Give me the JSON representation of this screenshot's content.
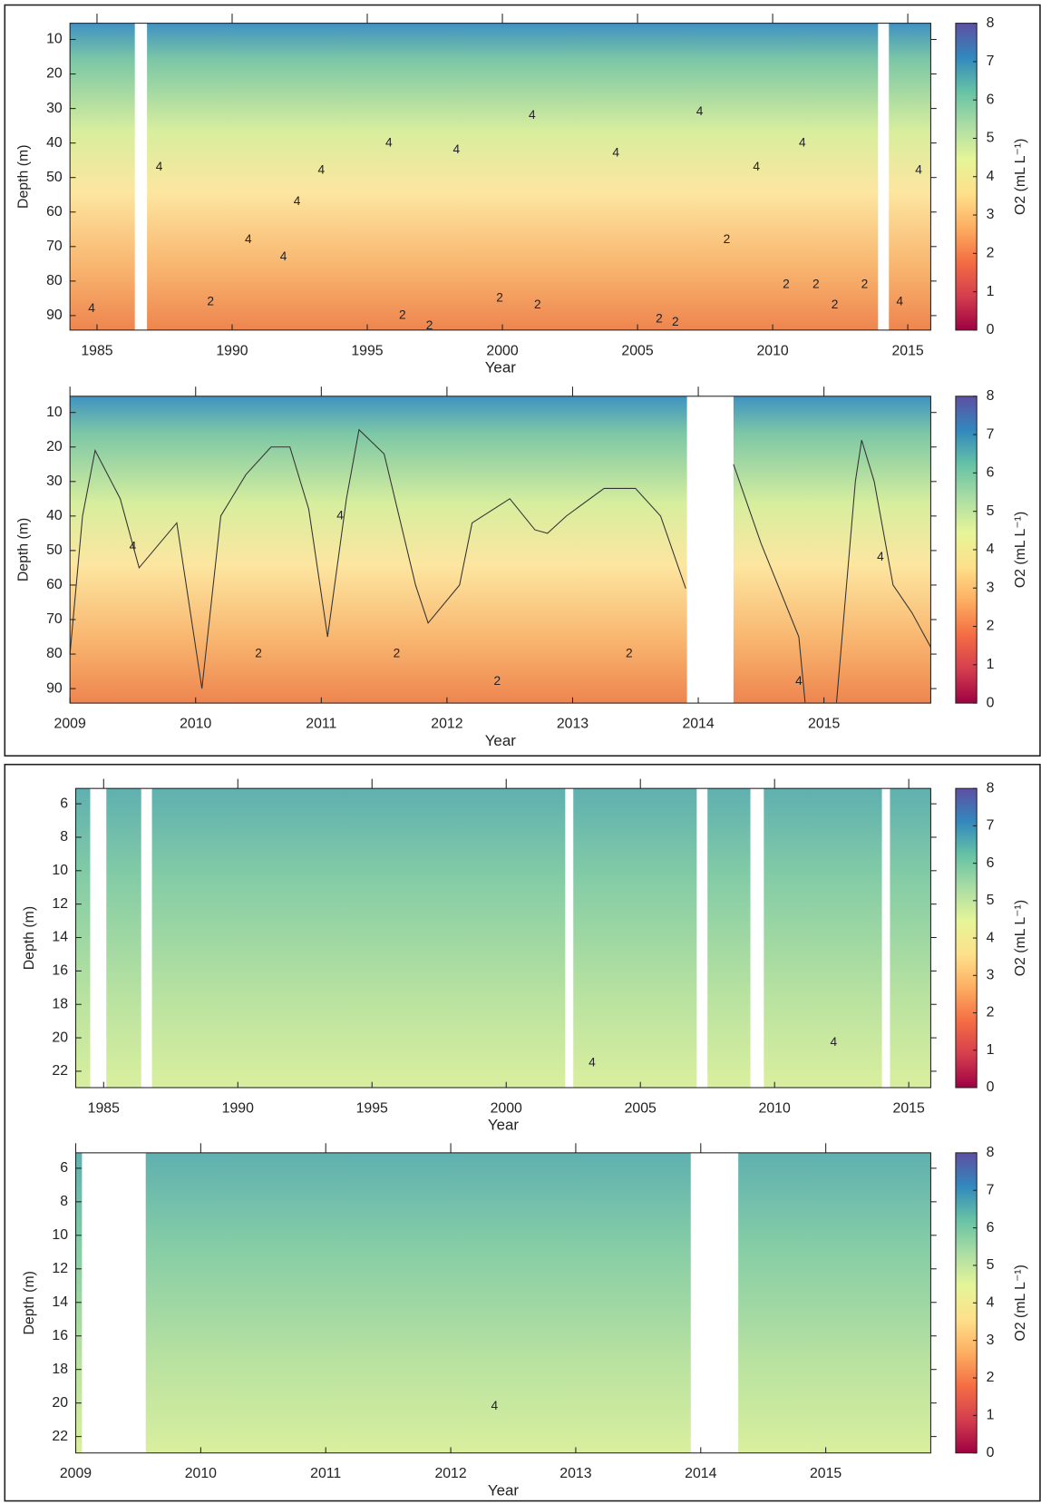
{
  "chart_data": [
    {
      "type": "heatmap",
      "xlabel": "Year",
      "ylabel": "Depth (m)",
      "colorbar_label": "O2 (mL L⁻¹)",
      "colormap": [
        "#9e0142",
        "#d53e4f",
        "#f46d43",
        "#fdae61",
        "#fee08b",
        "#e6f598",
        "#abdda4",
        "#66c2a5",
        "#3288bd",
        "#5e4fa2"
      ],
      "xlim": [
        1984,
        2015.85
      ],
      "xticks": [
        1985,
        1990,
        1995,
        2000,
        2005,
        2010,
        2015
      ],
      "ylim": [
        5.3,
        94.2
      ],
      "yticks": [
        10,
        20,
        30,
        40,
        50,
        60,
        70,
        80,
        90
      ],
      "clim": [
        0,
        8
      ],
      "cticks": [
        0,
        1,
        2,
        3,
        4,
        5,
        6,
        7,
        8
      ],
      "gaps": [
        [
          1986.4,
          1986.85
        ],
        [
          2013.9,
          2014.3
        ]
      ],
      "contour_labels": [
        {
          "x": 1984.8,
          "y": 88,
          "level": 4
        },
        {
          "x": 1987.3,
          "y": 47,
          "level": 4
        },
        {
          "x": 1989.2,
          "y": 86,
          "level": 2
        },
        {
          "x": 1990.6,
          "y": 68,
          "level": 4
        },
        {
          "x": 1991.9,
          "y": 73,
          "level": 4
        },
        {
          "x": 1992.4,
          "y": 57,
          "level": 4
        },
        {
          "x": 1993.3,
          "y": 48,
          "level": 4
        },
        {
          "x": 1995.8,
          "y": 40,
          "level": 4
        },
        {
          "x": 1996.3,
          "y": 90,
          "level": 2
        },
        {
          "x": 1997.3,
          "y": 93,
          "level": 2
        },
        {
          "x": 1998.3,
          "y": 42,
          "level": 4
        },
        {
          "x": 1999.9,
          "y": 85,
          "level": 2
        },
        {
          "x": 2001.1,
          "y": 32,
          "level": 4
        },
        {
          "x": 2001.3,
          "y": 87,
          "level": 2
        },
        {
          "x": 2004.2,
          "y": 43,
          "level": 4
        },
        {
          "x": 2005.8,
          "y": 91,
          "level": 2
        },
        {
          "x": 2006.4,
          "y": 92,
          "level": 2
        },
        {
          "x": 2007.3,
          "y": 31,
          "level": 4
        },
        {
          "x": 2008.3,
          "y": 68,
          "level": 2
        },
        {
          "x": 2009.4,
          "y": 47,
          "level": 4
        },
        {
          "x": 2010.5,
          "y": 81,
          "level": 2
        },
        {
          "x": 2011.1,
          "y": 40,
          "level": 4
        },
        {
          "x": 2011.6,
          "y": 81,
          "level": 2
        },
        {
          "x": 2012.3,
          "y": 87,
          "level": 2
        },
        {
          "x": 2013.4,
          "y": 81,
          "level": 2
        },
        {
          "x": 2014.7,
          "y": 86,
          "level": 4
        },
        {
          "x": 2015.4,
          "y": 48,
          "level": 4
        }
      ],
      "field": "deep"
    },
    {
      "type": "heatmap",
      "xlabel": "Year",
      "ylabel": "Depth (m)",
      "colorbar_label": "O2 (mL L⁻¹)",
      "colormap": [
        "#9e0142",
        "#d53e4f",
        "#f46d43",
        "#fdae61",
        "#fee08b",
        "#e6f598",
        "#abdda4",
        "#66c2a5",
        "#3288bd",
        "#5e4fa2"
      ],
      "xlim": [
        2009,
        2015.85
      ],
      "xticks": [
        2009,
        2010,
        2011,
        2012,
        2013,
        2014,
        2015
      ],
      "ylim": [
        5.3,
        94.2
      ],
      "yticks": [
        10,
        20,
        30,
        40,
        50,
        60,
        70,
        80,
        90
      ],
      "clim": [
        0,
        8
      ],
      "cticks": [
        0,
        1,
        2,
        3,
        4,
        5,
        6,
        7,
        8
      ],
      "gaps": [
        [
          2013.91,
          2014.28
        ]
      ],
      "contours": [
        {
          "level": 4,
          "x": [
            2009.0,
            2009.1,
            2009.2,
            2009.4,
            2009.55,
            2009.85,
            2010.05,
            2010.2,
            2010.4,
            2010.6,
            2010.75,
            2010.9,
            2011.05,
            2011.2,
            2011.3,
            2011.5,
            2011.75,
            2011.85,
            2012.1,
            2012.2,
            2012.5,
            2012.7,
            2012.8,
            2012.95,
            2013.25,
            2013.5,
            2013.7,
            2013.9,
            2014.1,
            2014.28,
            2014.5,
            2014.8,
            2014.85,
            2015.0,
            2015.1,
            2015.25,
            2015.3,
            2015.4,
            2015.55,
            2015.7,
            2015.85
          ],
          "y": [
            80,
            40,
            21,
            35,
            55,
            42,
            90,
            40,
            28,
            20,
            20,
            38,
            75,
            35,
            15,
            22,
            60,
            71,
            60,
            42,
            35,
            44,
            45,
            40,
            32,
            32,
            40,
            61,
            null,
            25,
            48,
            75,
            94,
            null,
            94,
            30,
            18,
            30,
            60,
            68,
            78
          ]
        }
      ],
      "contour_labels": [
        {
          "x": 2009.5,
          "y": 49,
          "level": 4
        },
        {
          "x": 2011.15,
          "y": 40,
          "level": 4
        },
        {
          "x": 2010.5,
          "y": 80,
          "level": 2
        },
        {
          "x": 2011.6,
          "y": 80,
          "level": 2
        },
        {
          "x": 2012.4,
          "y": 88,
          "level": 2
        },
        {
          "x": 2013.45,
          "y": 80,
          "level": 2
        },
        {
          "x": 2014.8,
          "y": 88,
          "level": 4
        },
        {
          "x": 2015.45,
          "y": 52,
          "level": 4
        }
      ],
      "field": "deep"
    },
    {
      "type": "heatmap",
      "xlabel": "Year",
      "ylabel": "Depth (m)",
      "colorbar_label": "O2 (mL L⁻¹)",
      "colormap": [
        "#9e0142",
        "#d53e4f",
        "#f46d43",
        "#fdae61",
        "#fee08b",
        "#e6f598",
        "#abdda4",
        "#66c2a5",
        "#3288bd",
        "#5e4fa2"
      ],
      "xlim": [
        1983.96,
        2015.82
      ],
      "xticks": [
        1985,
        1990,
        1995,
        2000,
        2005,
        2010,
        2015
      ],
      "ylim": [
        5.08,
        22.98
      ],
      "yticks": [
        6,
        8,
        10,
        12,
        14,
        16,
        18,
        20,
        22
      ],
      "clim": [
        0,
        8
      ],
      "cticks": [
        0,
        1,
        2,
        3,
        4,
        5,
        6,
        7,
        8
      ],
      "gaps": [
        [
          1984.5,
          1985.1
        ],
        [
          1986.4,
          1986.8
        ],
        [
          2002.2,
          2002.5
        ],
        [
          2007.1,
          2007.5
        ],
        [
          2009.1,
          2009.6
        ],
        [
          2014.0,
          2014.3
        ]
      ],
      "contour_labels": [
        {
          "x": 2003.2,
          "y": 21.5,
          "level": 4
        },
        {
          "x": 2012.2,
          "y": 20.3,
          "level": 4
        }
      ],
      "field": "shallow"
    },
    {
      "type": "heatmap",
      "xlabel": "Year",
      "ylabel": "Depth (m)",
      "colorbar_label": "O2 (mL L⁻¹)",
      "colormap": [
        "#9e0142",
        "#d53e4f",
        "#f46d43",
        "#fdae61",
        "#fee08b",
        "#e6f598",
        "#abdda4",
        "#66c2a5",
        "#3288bd",
        "#5e4fa2"
      ],
      "xlim": [
        2009,
        2015.84
      ],
      "xticks": [
        2009,
        2010,
        2011,
        2012,
        2013,
        2014,
        2015
      ],
      "ylim": [
        5.08,
        22.98
      ],
      "yticks": [
        6,
        8,
        10,
        12,
        14,
        16,
        18,
        20,
        22
      ],
      "clim": [
        0,
        8
      ],
      "cticks": [
        0,
        1,
        2,
        3,
        4,
        5,
        6,
        7,
        8
      ],
      "gaps": [
        [
          2009.05,
          2009.56
        ],
        [
          2013.92,
          2014.3
        ]
      ],
      "contour_labels": [
        {
          "x": 2012.35,
          "y": 20.2,
          "level": 4
        }
      ],
      "field": "shallow"
    }
  ]
}
